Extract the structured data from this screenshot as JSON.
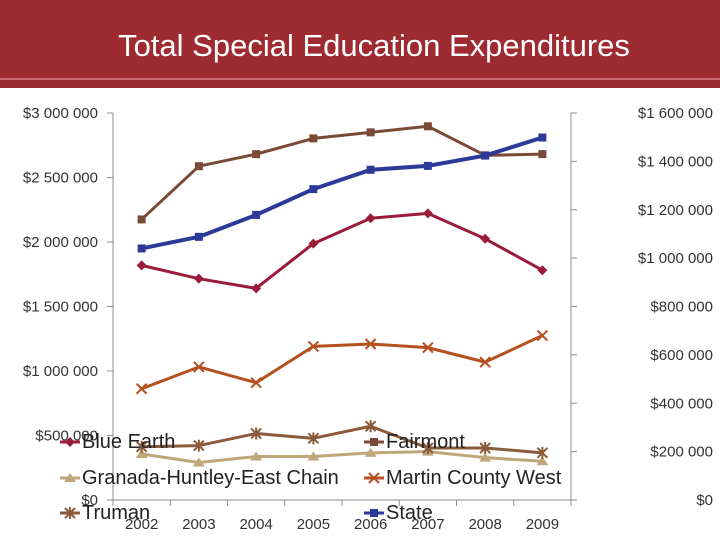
{
  "title": "Total Special Education Expenditures",
  "chart_data": {
    "type": "line",
    "x": [
      "2002",
      "2003",
      "2004",
      "2005",
      "2006",
      "2007",
      "2008",
      "2009"
    ],
    "axes": {
      "left": {
        "ticks": [
          "$0",
          "$500 000",
          "$1 000 000",
          "$1 500 000",
          "$2 000 000",
          "$2 500 000",
          "$3 000 000"
        ],
        "ylim": [
          0,
          3000000
        ]
      },
      "right": {
        "ticks": [
          "$0",
          "$200 000",
          "$400 000",
          "$600 000",
          "$800 000",
          "$1 000 000",
          "$1 200 000",
          "$1 400 000",
          "$1 600 000"
        ],
        "ylim": [
          0,
          1600000
        ]
      }
    },
    "legend_position": "bottom-left",
    "series": [
      {
        "name": "Blue Earth",
        "axis": "right",
        "color": "#9b1b3a",
        "marker": "diamond",
        "values": [
          970000,
          915000,
          875000,
          1060000,
          1165000,
          1185000,
          1080000,
          950000
        ]
      },
      {
        "name": "Fairmont",
        "axis": "right",
        "color": "#7b4a37",
        "marker": "square",
        "values": [
          1160000,
          1380000,
          1430000,
          1495000,
          1520000,
          1545000,
          1425000,
          1430000
        ]
      },
      {
        "name": "Granada-Huntley-East Chain",
        "axis": "right",
        "color": "#bfa77a",
        "marker": "triangle",
        "values": [
          190000,
          155000,
          180000,
          180000,
          195000,
          200000,
          175000,
          160000
        ]
      },
      {
        "name": "Martin County West",
        "axis": "right",
        "color": "#b5501f",
        "marker": "x",
        "values": [
          460000,
          550000,
          485000,
          635000,
          645000,
          630000,
          570000,
          680000
        ]
      },
      {
        "name": "Truman",
        "axis": "right",
        "color": "#8b5a3a",
        "marker": "star",
        "values": [
          220000,
          225000,
          275000,
          255000,
          305000,
          215000,
          215000,
          195000
        ]
      },
      {
        "name": "State",
        "axis": "left",
        "color": "#2b3a99",
        "marker": "square",
        "values": [
          1950000,
          2040000,
          2210000,
          2410000,
          2560000,
          2590000,
          2670000,
          2810000
        ]
      }
    ]
  }
}
